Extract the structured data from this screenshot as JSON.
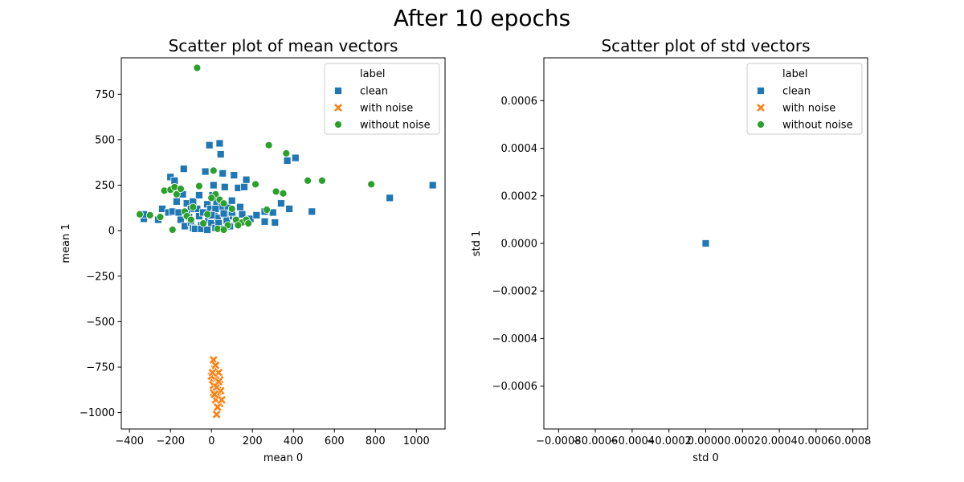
{
  "figure": {
    "title": "After 10 epochs"
  },
  "chart_data": [
    {
      "type": "scatter",
      "title": "Scatter plot of mean vectors",
      "xlabel": "mean 0",
      "ylabel": "mean 1",
      "xlim": [
        -440,
        1140
      ],
      "ylim": [
        -1090,
        950
      ],
      "xticks": [
        -400,
        -200,
        0,
        200,
        400,
        600,
        800,
        1000
      ],
      "xtick_labels": [
        "−400",
        "−200",
        "0",
        "200",
        "400",
        "600",
        "800",
        "1000"
      ],
      "yticks": [
        -1000,
        -750,
        -500,
        -250,
        0,
        250,
        500,
        750
      ],
      "ytick_labels": [
        "−1000",
        "−750",
        "−500",
        "−250",
        "0",
        "250",
        "500",
        "750"
      ],
      "legend": {
        "title": "label",
        "position": "top-right"
      },
      "series": [
        {
          "name": "clean",
          "marker": "square",
          "color": "#1f77b4",
          "points": [
            [
              -330,
              65
            ],
            [
              -330,
              90
            ],
            [
              -260,
              60
            ],
            [
              -240,
              120
            ],
            [
              -210,
              100
            ],
            [
              -200,
              295
            ],
            [
              -190,
              105
            ],
            [
              -180,
              275
            ],
            [
              -170,
              160
            ],
            [
              -160,
              100
            ],
            [
              -150,
              60
            ],
            [
              -140,
              200
            ],
            [
              -135,
              340
            ],
            [
              -130,
              25
            ],
            [
              -120,
              150
            ],
            [
              -110,
              75
            ],
            [
              -100,
              45
            ],
            [
              -90,
              15
            ],
            [
              -90,
              160
            ],
            [
              -80,
              10
            ],
            [
              -70,
              120
            ],
            [
              -60,
              80
            ],
            [
              -50,
              30
            ],
            [
              -40,
              100
            ],
            [
              -30,
              325
            ],
            [
              -20,
              145
            ],
            [
              -15,
              60
            ],
            [
              -10,
              470
            ],
            [
              -5,
              120
            ],
            [
              0,
              40
            ],
            [
              5,
              195
            ],
            [
              10,
              250
            ],
            [
              15,
              95
            ],
            [
              20,
              15
            ],
            [
              25,
              160
            ],
            [
              30,
              70
            ],
            [
              35,
              40
            ],
            [
              40,
              480
            ],
            [
              45,
              420
            ],
            [
              50,
              130
            ],
            [
              55,
              315
            ],
            [
              60,
              10
            ],
            [
              65,
              240
            ],
            [
              70,
              85
            ],
            [
              75,
              55
            ],
            [
              80,
              130
            ],
            [
              90,
              25
            ],
            [
              100,
              165
            ],
            [
              105,
              80
            ],
            [
              110,
              305
            ],
            [
              120,
              60
            ],
            [
              130,
              235
            ],
            [
              140,
              130
            ],
            [
              150,
              90
            ],
            [
              160,
              240
            ],
            [
              170,
              280
            ],
            [
              190,
              65
            ],
            [
              220,
              85
            ],
            [
              260,
              105
            ],
            [
              260,
              50
            ],
            [
              300,
              100
            ],
            [
              310,
              45
            ],
            [
              340,
              150
            ],
            [
              370,
              385
            ],
            [
              380,
              120
            ],
            [
              410,
              400
            ],
            [
              490,
              105
            ],
            [
              870,
              180
            ],
            [
              1080,
              250
            ],
            [
              -50,
              10
            ],
            [
              -100,
              120
            ],
            [
              -60,
              195
            ],
            [
              20,
              120
            ],
            [
              -20,
              5
            ],
            [
              0,
              85
            ],
            [
              60,
              95
            ],
            [
              -120,
              90
            ],
            [
              100,
              100
            ]
          ]
        },
        {
          "name": "with noise",
          "marker": "x",
          "color": "#ff7f0e",
          "points": [
            [
              10,
              -710
            ],
            [
              15,
              -760
            ],
            [
              20,
              -790
            ],
            [
              5,
              -820
            ],
            [
              25,
              -830
            ],
            [
              30,
              -850
            ],
            [
              15,
              -870
            ],
            [
              10,
              -890
            ],
            [
              35,
              -910
            ],
            [
              20,
              -930
            ],
            [
              40,
              -950
            ],
            [
              25,
              -1010
            ],
            [
              30,
              -970
            ],
            [
              45,
              -880
            ],
            [
              0,
              -800
            ],
            [
              35,
              -780
            ],
            [
              20,
              -740
            ],
            [
              40,
              -820
            ],
            [
              10,
              -850
            ],
            [
              30,
              -900
            ],
            [
              50,
              -930
            ],
            [
              15,
              -900
            ],
            [
              25,
              -860
            ],
            [
              5,
              -780
            ],
            [
              35,
              -830
            ]
          ]
        },
        {
          "name": "without noise",
          "marker": "circle",
          "color": "#2ca02c",
          "points": [
            [
              -70,
              895
            ],
            [
              -350,
              90
            ],
            [
              -300,
              85
            ],
            [
              -230,
              220
            ],
            [
              -200,
              225
            ],
            [
              -180,
              240
            ],
            [
              -170,
              200
            ],
            [
              -150,
              230
            ],
            [
              -130,
              105
            ],
            [
              -120,
              80
            ],
            [
              -100,
              60
            ],
            [
              -60,
              245
            ],
            [
              -40,
              40
            ],
            [
              -20,
              90
            ],
            [
              10,
              330
            ],
            [
              20,
              200
            ],
            [
              40,
              170
            ],
            [
              60,
              150
            ],
            [
              80,
              30
            ],
            [
              100,
              120
            ],
            [
              120,
              60
            ],
            [
              150,
              45
            ],
            [
              170,
              60
            ],
            [
              215,
              255
            ],
            [
              280,
              470
            ],
            [
              315,
              215
            ],
            [
              350,
              205
            ],
            [
              365,
              425
            ],
            [
              470,
              275
            ],
            [
              540,
              275
            ],
            [
              780,
              255
            ],
            [
              -190,
              5
            ],
            [
              -90,
              130
            ],
            [
              0,
              180
            ],
            [
              30,
              10
            ],
            [
              130,
              30
            ],
            [
              270,
              115
            ],
            [
              -250,
              75
            ],
            [
              180,
              40
            ],
            [
              60,
              5
            ]
          ]
        }
      ]
    },
    {
      "type": "scatter",
      "title": "Scatter plot of std vectors",
      "xlabel": "std 0",
      "ylabel": "std 1",
      "xlim": [
        -0.00088,
        0.00088
      ],
      "ylim": [
        -0.00078,
        0.00078
      ],
      "xticks": [
        -0.0008,
        -0.0006,
        -0.0004,
        -0.0002,
        0.0,
        0.0002,
        0.0004,
        0.0006,
        0.0008
      ],
      "xtick_labels": [
        "−0.0008",
        "−0.0006",
        "−0.0004",
        "−0.0002",
        "0.0000",
        "0.0002",
        "0.0004",
        "0.0006",
        "0.0008"
      ],
      "yticks": [
        -0.0006,
        -0.0004,
        -0.0002,
        0.0,
        0.0002,
        0.0004,
        0.0006
      ],
      "ytick_labels": [
        "−0.0006",
        "−0.0004",
        "−0.0002",
        "0.0000",
        "0.0002",
        "0.0004",
        "0.0006"
      ],
      "legend": {
        "title": "label",
        "position": "top-right"
      },
      "series": [
        {
          "name": "clean",
          "marker": "square",
          "color": "#1f77b4",
          "points": [
            [
              0.0,
              0.0
            ]
          ]
        },
        {
          "name": "with noise",
          "marker": "x",
          "color": "#ff7f0e",
          "points": []
        },
        {
          "name": "without noise",
          "marker": "circle",
          "color": "#2ca02c",
          "points": []
        }
      ]
    }
  ]
}
